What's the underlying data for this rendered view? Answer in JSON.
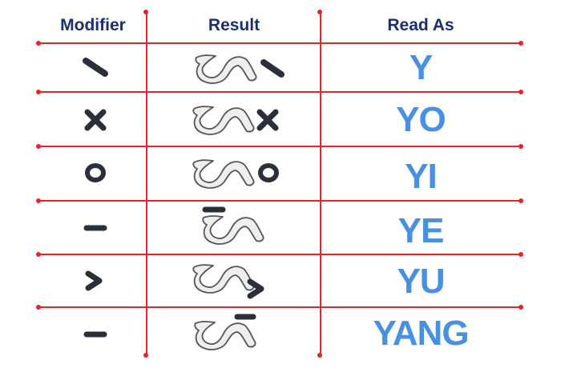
{
  "headers": {
    "modifier": "Modifier",
    "result": "Result",
    "read_as": "Read As"
  },
  "rows": [
    {
      "modifier_icon": "slash-stroke-icon",
      "result_icon": "base-glyph-with-slash-icon",
      "read_as": "Y"
    },
    {
      "modifier_icon": "cross-stroke-icon",
      "result_icon": "base-glyph-with-cross-icon",
      "read_as": "YO"
    },
    {
      "modifier_icon": "circle-stroke-icon",
      "result_icon": "base-glyph-with-circle-icon",
      "read_as": "YI"
    },
    {
      "modifier_icon": "bar-stroke-icon",
      "result_icon": "base-glyph-with-bar-above-icon",
      "read_as": "YE"
    },
    {
      "modifier_icon": "chevron-stroke-icon",
      "result_icon": "base-glyph-with-chevron-icon",
      "read_as": "YU"
    },
    {
      "modifier_icon": "bar-stroke-icon",
      "result_icon": "base-glyph-with-bar-top-right-icon",
      "read_as": "YANG"
    }
  ],
  "colors": {
    "header_text": "#1b2f6e",
    "grid_lines": "#e8222a",
    "read_as_text": "#4a90e2",
    "glyph_fill": "#eeeeee",
    "glyph_outline": "#555555",
    "modifier_mark": "#2b2f3a"
  }
}
